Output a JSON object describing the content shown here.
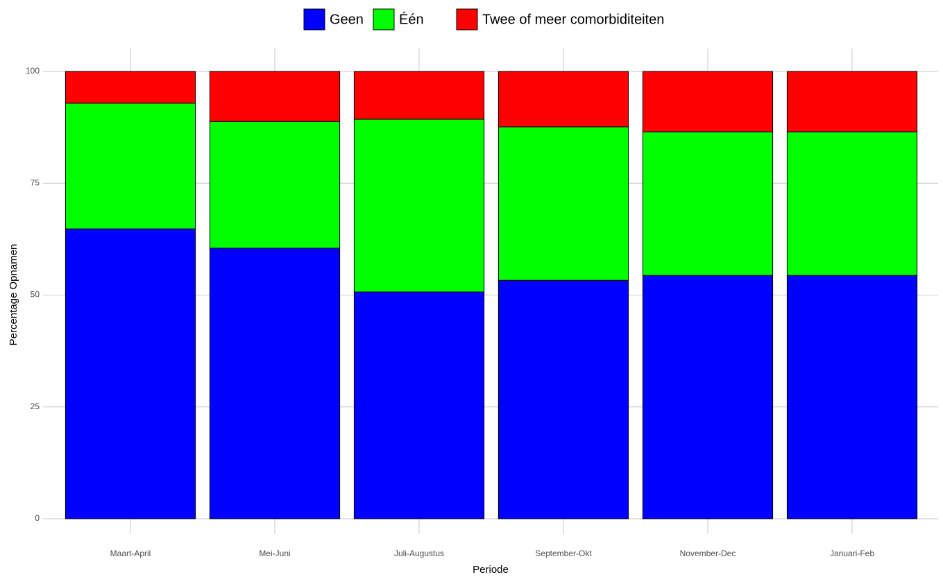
{
  "chart_data": {
    "type": "stacked_bar",
    "x_label": "Periode",
    "y_label": "Percentage Opnamen",
    "categories": [
      "Maart-April",
      "Mei-Juni",
      "Juli-Augustus",
      "September-Okt",
      "November-Dec",
      "Januari-Feb"
    ],
    "series": [
      {
        "name": "Geen",
        "color": "#0000ff",
        "values": [
          64.8,
          60.5,
          50.7,
          53.3,
          54.4,
          54.4
        ]
      },
      {
        "name": "Één",
        "color": "#00ff00",
        "values": [
          28.1,
          28.3,
          38.6,
          34.3,
          32.1,
          32.1
        ]
      },
      {
        "name": "Twee of meer comorbiditeiten",
        "color": "#ff0000",
        "values": [
          7.1,
          11.2,
          10.7,
          12.4,
          13.5,
          13.5
        ]
      }
    ],
    "ylim": [
      0,
      100
    ],
    "yticks": [
      0,
      25,
      50,
      75,
      100
    ],
    "grid": true,
    "legend": "top"
  }
}
